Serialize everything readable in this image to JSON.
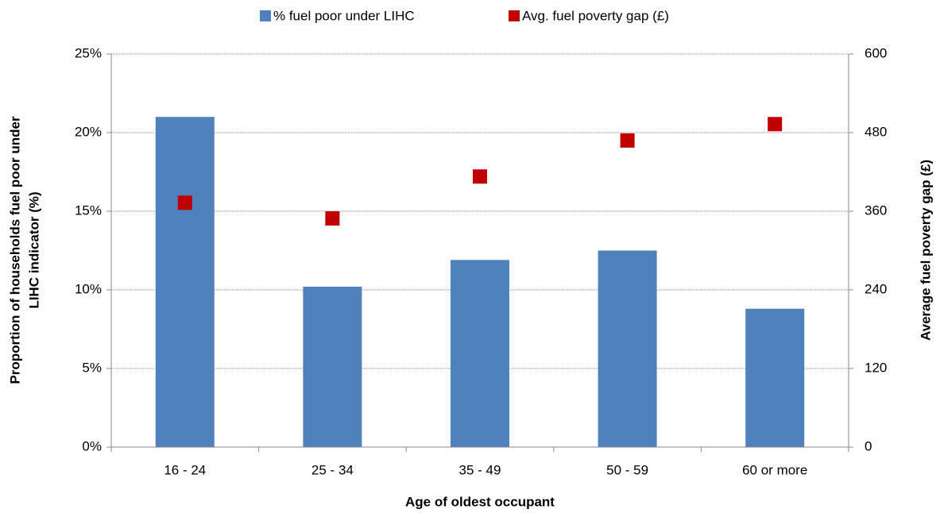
{
  "chart_data": {
    "type": "bar",
    "categories": [
      "16 - 24",
      "25 - 34",
      "35 - 49",
      "50 - 59",
      "60 or more"
    ],
    "series": [
      {
        "name": "% fuel poor under LIHC",
        "type": "bar",
        "color": "#4f81bd",
        "values": [
          21.0,
          10.2,
          11.9,
          12.5,
          8.8
        ]
      },
      {
        "name": "Avg. fuel poverty gap (£)",
        "type": "scatter",
        "axis": "y2",
        "color": "#c00000",
        "values": [
          373,
          349,
          413,
          468,
          493
        ]
      }
    ],
    "x_label": "Age of oldest occupant",
    "y_label": [
      "Proportion of households fuel poor under",
      "LIHC indicator (%)"
    ],
    "y2_label": "Average fuel poverty gap (£)",
    "ylim": [
      0,
      25
    ],
    "yticks": [
      {
        "value": 0,
        "label": "0%"
      },
      {
        "value": 5,
        "label": "5%"
      },
      {
        "value": 10,
        "label": "10%"
      },
      {
        "value": 15,
        "label": "15%"
      },
      {
        "value": 20,
        "label": "20%"
      },
      {
        "value": 25,
        "label": "25%"
      }
    ],
    "y2lim": [
      0,
      600
    ],
    "y2ticks": [
      0,
      120,
      240,
      360,
      480,
      600
    ],
    "grid": true,
    "legend": "top"
  }
}
